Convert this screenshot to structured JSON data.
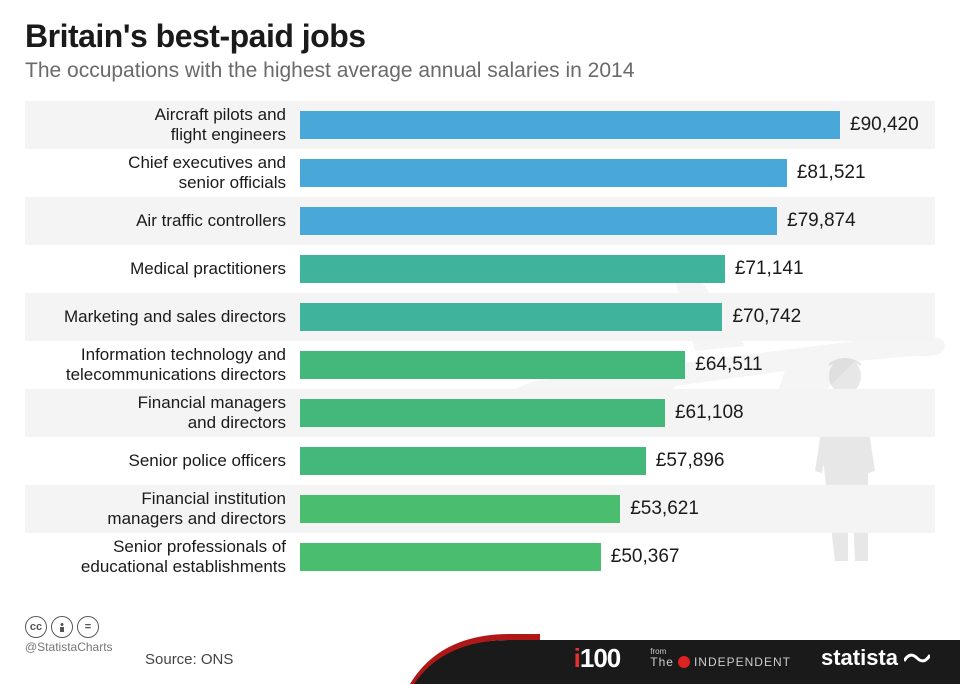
{
  "title": "Britain's best-paid jobs",
  "subtitle": "The occupations with the highest average annual salaries in 2014",
  "max_value": 90420,
  "bar_area_width": 540,
  "rows": [
    {
      "label1": "Aircraft pilots and",
      "label2": "flight engineers",
      "value": 90420,
      "value_text": "£90,420",
      "color": "#4aa8d8",
      "stripe": true
    },
    {
      "label1": "Chief executives and",
      "label2": "senior officials",
      "value": 81521,
      "value_text": "£81,521",
      "color": "#4aa8d8",
      "stripe": false
    },
    {
      "label1": "Air traffic controllers",
      "label2": "",
      "value": 79874,
      "value_text": "£79,874",
      "color": "#4aa8d8",
      "stripe": true
    },
    {
      "label1": "Medical practitioners",
      "label2": "",
      "value": 71141,
      "value_text": "£71,141",
      "color": "#3fb39b",
      "stripe": false
    },
    {
      "label1": "Marketing and sales directors",
      "label2": "",
      "value": 70742,
      "value_text": "£70,742",
      "color": "#3fb39b",
      "stripe": true
    },
    {
      "label1": "Information technology and",
      "label2": "telecommunications directors",
      "value": 64511,
      "value_text": "£64,511",
      "color": "#44b87a",
      "stripe": false
    },
    {
      "label1": "Financial managers",
      "label2": "and directors",
      "value": 61108,
      "value_text": "£61,108",
      "color": "#44b87a",
      "stripe": true
    },
    {
      "label1": "Senior police officers",
      "label2": "",
      "value": 57896,
      "value_text": "£57,896",
      "color": "#44b87a",
      "stripe": false
    },
    {
      "label1": "Financial institution",
      "label2": "managers and directors",
      "value": 53621,
      "value_text": "£53,621",
      "color": "#4abd6e",
      "stripe": true
    },
    {
      "label1": "Senior professionals of",
      "label2": "educational establishments",
      "value": 50367,
      "value_text": "£50,367",
      "color": "#4abd6e",
      "stripe": false
    }
  ],
  "footer": {
    "handle": "@StatistaCharts",
    "source_label": "Source: ONS",
    "i100_i": "i",
    "i100_100": "100",
    "indep_from": "from",
    "indep_name": "INDEPENDENT",
    "statista": "statista"
  },
  "colors": {
    "stripe_bg": "#f4f4f4",
    "footer_black": "#1a1a1a",
    "footer_red": "#b01818"
  }
}
